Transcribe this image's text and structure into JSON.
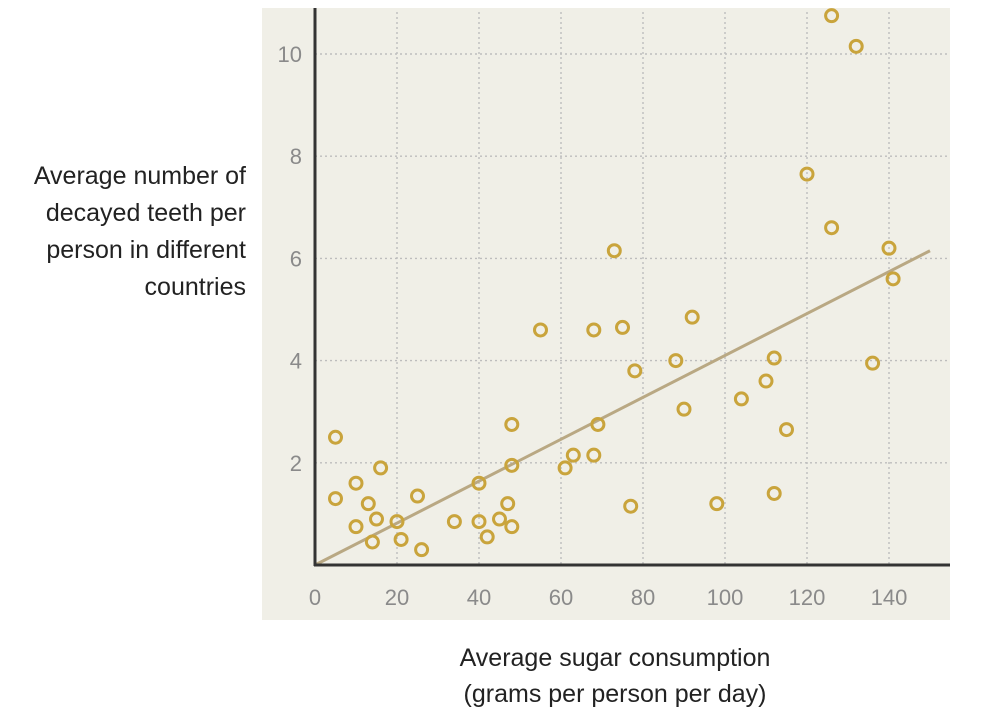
{
  "chart_data": {
    "type": "scatter",
    "ylabel_lines": [
      "Average number of",
      "decayed teeth per",
      "person in different",
      "countries"
    ],
    "xlabel_lines": [
      "Average sugar consumption",
      "(grams per person per day)"
    ],
    "xlim": [
      0,
      150
    ],
    "ylim": [
      0,
      11
    ],
    "xticks": [
      0,
      20,
      40,
      60,
      80,
      100,
      120,
      140
    ],
    "xtick_labels": [
      "0",
      "20",
      "40",
      "60",
      "80",
      "100",
      "120",
      "140"
    ],
    "yticks": [
      2,
      4,
      6,
      8,
      10
    ],
    "ytick_labels": [
      "2",
      "4",
      "6",
      "8",
      "10"
    ],
    "grid": true,
    "colors": {
      "point": "#c9a43c",
      "trend_line": "#b9a883",
      "panel_background": "#f0efe7",
      "grid": "#bdbdbd",
      "axis": "#333333"
    },
    "points": [
      {
        "x": 5,
        "y": 2.5
      },
      {
        "x": 5,
        "y": 1.3
      },
      {
        "x": 10,
        "y": 1.6
      },
      {
        "x": 10,
        "y": 0.75
      },
      {
        "x": 13,
        "y": 1.2
      },
      {
        "x": 15,
        "y": 0.9
      },
      {
        "x": 14,
        "y": 0.45
      },
      {
        "x": 16,
        "y": 1.9
      },
      {
        "x": 20,
        "y": 0.85
      },
      {
        "x": 21,
        "y": 0.5
      },
      {
        "x": 25,
        "y": 1.35
      },
      {
        "x": 26,
        "y": 0.3
      },
      {
        "x": 34,
        "y": 0.85
      },
      {
        "x": 40,
        "y": 1.6
      },
      {
        "x": 40,
        "y": 0.85
      },
      {
        "x": 42,
        "y": 0.55
      },
      {
        "x": 45,
        "y": 0.9
      },
      {
        "x": 47,
        "y": 1.2
      },
      {
        "x": 48,
        "y": 0.75
      },
      {
        "x": 48,
        "y": 1.95
      },
      {
        "x": 48,
        "y": 2.75
      },
      {
        "x": 55,
        "y": 4.6
      },
      {
        "x": 61,
        "y": 1.9
      },
      {
        "x": 63,
        "y": 2.15
      },
      {
        "x": 68,
        "y": 2.15
      },
      {
        "x": 69,
        "y": 2.75
      },
      {
        "x": 68,
        "y": 4.6
      },
      {
        "x": 73,
        "y": 6.15
      },
      {
        "x": 75,
        "y": 4.65
      },
      {
        "x": 77,
        "y": 1.15
      },
      {
        "x": 78,
        "y": 3.8
      },
      {
        "x": 88,
        "y": 4.0
      },
      {
        "x": 90,
        "y": 3.05
      },
      {
        "x": 92,
        "y": 4.85
      },
      {
        "x": 98,
        "y": 1.2
      },
      {
        "x": 104,
        "y": 3.25
      },
      {
        "x": 110,
        "y": 3.6
      },
      {
        "x": 112,
        "y": 1.4
      },
      {
        "x": 112,
        "y": 4.05
      },
      {
        "x": 115,
        "y": 2.65
      },
      {
        "x": 120,
        "y": 7.65
      },
      {
        "x": 126,
        "y": 10.75
      },
      {
        "x": 126,
        "y": 6.6
      },
      {
        "x": 132,
        "y": 10.15
      },
      {
        "x": 136,
        "y": 3.95
      },
      {
        "x": 140,
        "y": 6.2
      },
      {
        "x": 141,
        "y": 5.6
      }
    ],
    "trend_line": {
      "x": [
        0,
        150
      ],
      "y": [
        0,
        6.15
      ]
    }
  }
}
